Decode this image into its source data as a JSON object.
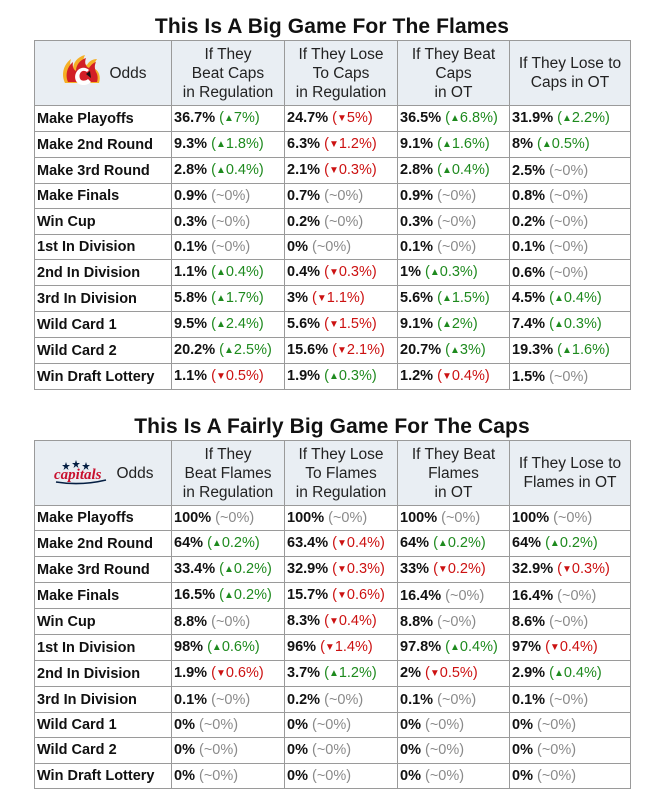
{
  "colors": {
    "up": "#1e8a1e",
    "down": "#cc1111",
    "flat": "#8a8a8a",
    "header_bg": "#e9eef3",
    "flames_red": "#d21f26",
    "flames_gold": "#f5b026",
    "caps_red": "#c8102e",
    "caps_navy": "#041e42"
  },
  "sections": [
    {
      "id": "flames",
      "title": "This Is A Big Game For The Flames",
      "logo_icon": "calgary-flames-logo-icon",
      "odds_label": "Odds",
      "headers": [
        "If They\nBeat Caps\nin Regulation",
        "If They Lose\nTo Caps\nin Regulation",
        "If They Beat\nCaps\nin OT",
        "If They Lose to\nCaps in OT"
      ],
      "rows": [
        {
          "label": "Make Playoffs",
          "cells": [
            {
              "v": "36.7%",
              "d": "7%",
              "t": "up"
            },
            {
              "v": "24.7%",
              "d": "5%",
              "t": "down"
            },
            {
              "v": "36.5%",
              "d": "6.8%",
              "t": "up"
            },
            {
              "v": "31.9%",
              "d": "2.2%",
              "t": "up"
            }
          ]
        },
        {
          "label": "Make 2nd Round",
          "cells": [
            {
              "v": "9.3%",
              "d": "1.8%",
              "t": "up"
            },
            {
              "v": "6.3%",
              "d": "1.2%",
              "t": "down"
            },
            {
              "v": "9.1%",
              "d": "1.6%",
              "t": "up"
            },
            {
              "v": "8%",
              "d": "0.5%",
              "t": "up"
            }
          ]
        },
        {
          "label": "Make 3rd Round",
          "cells": [
            {
              "v": "2.8%",
              "d": "0.4%",
              "t": "up"
            },
            {
              "v": "2.1%",
              "d": "0.3%",
              "t": "down"
            },
            {
              "v": "2.8%",
              "d": "0.4%",
              "t": "up"
            },
            {
              "v": "2.5%",
              "d": "~0%",
              "t": "flat"
            }
          ]
        },
        {
          "label": "Make Finals",
          "cells": [
            {
              "v": "0.9%",
              "d": "~0%",
              "t": "flat"
            },
            {
              "v": "0.7%",
              "d": "~0%",
              "t": "flat"
            },
            {
              "v": "0.9%",
              "d": "~0%",
              "t": "flat"
            },
            {
              "v": "0.8%",
              "d": "~0%",
              "t": "flat"
            }
          ]
        },
        {
          "label": "Win Cup",
          "cells": [
            {
              "v": "0.3%",
              "d": "~0%",
              "t": "flat"
            },
            {
              "v": "0.2%",
              "d": "~0%",
              "t": "flat"
            },
            {
              "v": "0.3%",
              "d": "~0%",
              "t": "flat"
            },
            {
              "v": "0.2%",
              "d": "~0%",
              "t": "flat"
            }
          ]
        },
        {
          "label": "1st In Division",
          "cells": [
            {
              "v": "0.1%",
              "d": "~0%",
              "t": "flat"
            },
            {
              "v": "0%",
              "d": "~0%",
              "t": "flat"
            },
            {
              "v": "0.1%",
              "d": "~0%",
              "t": "flat"
            },
            {
              "v": "0.1%",
              "d": "~0%",
              "t": "flat"
            }
          ]
        },
        {
          "label": "2nd In Division",
          "cells": [
            {
              "v": "1.1%",
              "d": "0.4%",
              "t": "up"
            },
            {
              "v": "0.4%",
              "d": "0.3%",
              "t": "down"
            },
            {
              "v": "1%",
              "d": "0.3%",
              "t": "up"
            },
            {
              "v": "0.6%",
              "d": "~0%",
              "t": "flat"
            }
          ]
        },
        {
          "label": "3rd In Division",
          "cells": [
            {
              "v": "5.8%",
              "d": "1.7%",
              "t": "up"
            },
            {
              "v": "3%",
              "d": "1.1%",
              "t": "down"
            },
            {
              "v": "5.6%",
              "d": "1.5%",
              "t": "up"
            },
            {
              "v": "4.5%",
              "d": "0.4%",
              "t": "up"
            }
          ]
        },
        {
          "label": "Wild Card 1",
          "cells": [
            {
              "v": "9.5%",
              "d": "2.4%",
              "t": "up"
            },
            {
              "v": "5.6%",
              "d": "1.5%",
              "t": "down"
            },
            {
              "v": "9.1%",
              "d": "2%",
              "t": "up"
            },
            {
              "v": "7.4%",
              "d": "0.3%",
              "t": "up"
            }
          ]
        },
        {
          "label": "Wild Card 2",
          "cells": [
            {
              "v": "20.2%",
              "d": "2.5%",
              "t": "up"
            },
            {
              "v": "15.6%",
              "d": "2.1%",
              "t": "down"
            },
            {
              "v": "20.7%",
              "d": "3%",
              "t": "up"
            },
            {
              "v": "19.3%",
              "d": "1.6%",
              "t": "up"
            }
          ]
        },
        {
          "label": "Win Draft Lottery",
          "cells": [
            {
              "v": "1.1%",
              "d": "0.5%",
              "t": "down"
            },
            {
              "v": "1.9%",
              "d": "0.3%",
              "t": "up"
            },
            {
              "v": "1.2%",
              "d": "0.4%",
              "t": "down"
            },
            {
              "v": "1.5%",
              "d": "~0%",
              "t": "flat"
            }
          ]
        }
      ]
    },
    {
      "id": "caps",
      "title": "This Is A Fairly Big Game For The Caps",
      "logo_icon": "washington-capitals-logo-icon",
      "logo_wordmark": "capitals",
      "odds_label": "Odds",
      "headers": [
        "If They\nBeat Flames\nin Regulation",
        "If They Lose\nTo Flames\nin Regulation",
        "If They Beat\nFlames\nin OT",
        "If They Lose to\nFlames in OT"
      ],
      "rows": [
        {
          "label": "Make Playoffs",
          "cells": [
            {
              "v": "100%",
              "d": "~0%",
              "t": "flat"
            },
            {
              "v": "100%",
              "d": "~0%",
              "t": "flat"
            },
            {
              "v": "100%",
              "d": "~0%",
              "t": "flat"
            },
            {
              "v": "100%",
              "d": "~0%",
              "t": "flat"
            }
          ]
        },
        {
          "label": "Make 2nd Round",
          "cells": [
            {
              "v": "64%",
              "d": "0.2%",
              "t": "up"
            },
            {
              "v": "63.4%",
              "d": "0.4%",
              "t": "down"
            },
            {
              "v": "64%",
              "d": "0.2%",
              "t": "up"
            },
            {
              "v": "64%",
              "d": "0.2%",
              "t": "up"
            }
          ]
        },
        {
          "label": "Make 3rd Round",
          "cells": [
            {
              "v": "33.4%",
              "d": "0.2%",
              "t": "up"
            },
            {
              "v": "32.9%",
              "d": "0.3%",
              "t": "down"
            },
            {
              "v": "33%",
              "d": "0.2%",
              "t": "down"
            },
            {
              "v": "32.9%",
              "d": "0.3%",
              "t": "down"
            }
          ]
        },
        {
          "label": "Make Finals",
          "cells": [
            {
              "v": "16.5%",
              "d": "0.2%",
              "t": "up"
            },
            {
              "v": "15.7%",
              "d": "0.6%",
              "t": "down"
            },
            {
              "v": "16.4%",
              "d": "~0%",
              "t": "flat"
            },
            {
              "v": "16.4%",
              "d": "~0%",
              "t": "flat"
            }
          ]
        },
        {
          "label": "Win Cup",
          "cells": [
            {
              "v": "8.8%",
              "d": "~0%",
              "t": "flat"
            },
            {
              "v": "8.3%",
              "d": "0.4%",
              "t": "down"
            },
            {
              "v": "8.8%",
              "d": "~0%",
              "t": "flat"
            },
            {
              "v": "8.6%",
              "d": "~0%",
              "t": "flat"
            }
          ]
        },
        {
          "label": "1st In Division",
          "cells": [
            {
              "v": "98%",
              "d": "0.6%",
              "t": "up"
            },
            {
              "v": "96%",
              "d": "1.4%",
              "t": "down"
            },
            {
              "v": "97.8%",
              "d": "0.4%",
              "t": "up"
            },
            {
              "v": "97%",
              "d": "0.4%",
              "t": "down"
            }
          ]
        },
        {
          "label": "2nd In Division",
          "cells": [
            {
              "v": "1.9%",
              "d": "0.6%",
              "t": "down"
            },
            {
              "v": "3.7%",
              "d": "1.2%",
              "t": "up"
            },
            {
              "v": "2%",
              "d": "0.5%",
              "t": "down"
            },
            {
              "v": "2.9%",
              "d": "0.4%",
              "t": "up"
            }
          ]
        },
        {
          "label": "3rd In Division",
          "cells": [
            {
              "v": "0.1%",
              "d": "~0%",
              "t": "flat"
            },
            {
              "v": "0.2%",
              "d": "~0%",
              "t": "flat"
            },
            {
              "v": "0.1%",
              "d": "~0%",
              "t": "flat"
            },
            {
              "v": "0.1%",
              "d": "~0%",
              "t": "flat"
            }
          ]
        },
        {
          "label": "Wild Card 1",
          "cells": [
            {
              "v": "0%",
              "d": "~0%",
              "t": "flat"
            },
            {
              "v": "0%",
              "d": "~0%",
              "t": "flat"
            },
            {
              "v": "0%",
              "d": "~0%",
              "t": "flat"
            },
            {
              "v": "0%",
              "d": "~0%",
              "t": "flat"
            }
          ]
        },
        {
          "label": "Wild Card 2",
          "cells": [
            {
              "v": "0%",
              "d": "~0%",
              "t": "flat"
            },
            {
              "v": "0%",
              "d": "~0%",
              "t": "flat"
            },
            {
              "v": "0%",
              "d": "~0%",
              "t": "flat"
            },
            {
              "v": "0%",
              "d": "~0%",
              "t": "flat"
            }
          ]
        },
        {
          "label": "Win Draft Lottery",
          "cells": [
            {
              "v": "0%",
              "d": "~0%",
              "t": "flat"
            },
            {
              "v": "0%",
              "d": "~0%",
              "t": "flat"
            },
            {
              "v": "0%",
              "d": "~0%",
              "t": "flat"
            },
            {
              "v": "0%",
              "d": "~0%",
              "t": "flat"
            }
          ]
        }
      ]
    }
  ]
}
